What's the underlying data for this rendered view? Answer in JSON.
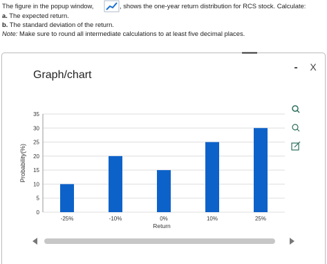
{
  "question": {
    "intro_before": "The figure in the popup window,",
    "intro_after": ", shows the one-year return distribution for RCS stock. Calculate:",
    "items": [
      {
        "label": "a.",
        "text": "The expected return."
      },
      {
        "label": "b.",
        "text": "The standard deviation of the return."
      }
    ],
    "note_label": "Note:",
    "note_text": "Make sure to round all intermediate calculations to at least five decimal places."
  },
  "popup": {
    "title": "Graph/chart",
    "minimize": "-",
    "close": "X"
  },
  "chart_data": {
    "type": "bar",
    "categories": [
      "-25%",
      "-10%",
      "0%",
      "10%",
      "25%"
    ],
    "values": [
      10,
      20,
      15,
      25,
      30
    ],
    "color": "#0d62c9",
    "xlabel": "Return",
    "ylabel": "Probability(%)",
    "ylim": [
      0,
      35
    ],
    "yticks": [
      0,
      5,
      10,
      15,
      20,
      25,
      30,
      35
    ],
    "grid": true
  }
}
